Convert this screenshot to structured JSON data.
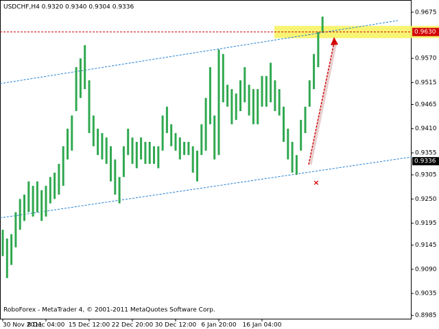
{
  "chart_data": {
    "type": "range-bar",
    "title": "USDCHF,H4 0.9320 0.9340 0.9304 0.9336",
    "footer": "RoboForex - MetaTrader 4, © 2001-2011 MetaQuotes Software Corp.",
    "categories": [
      "30 Nov 2011",
      null,
      null,
      null,
      null,
      null,
      null,
      null,
      null,
      null,
      "8 Dec 04:00",
      null,
      null,
      null,
      null,
      null,
      null,
      null,
      null,
      null,
      "15 Dec 12:00",
      null,
      null,
      null,
      null,
      null,
      null,
      null,
      null,
      null,
      "22 Dec 20:00",
      null,
      null,
      null,
      null,
      null,
      null,
      null,
      null,
      null,
      "30 Dec 12:00",
      null,
      null,
      null,
      null,
      null,
      null,
      null,
      null,
      null,
      "6 Jan 20:00",
      null,
      null,
      null,
      null,
      null,
      null,
      null,
      null,
      null,
      "16 Jan 04:00",
      null,
      null,
      null,
      null,
      null,
      null,
      null,
      null,
      null,
      null,
      null,
      null,
      null,
      null
    ],
    "series": [
      {
        "color": "#2fa84f",
        "low": [
          0.912,
          0.907,
          0.91,
          0.914,
          0.918,
          0.92,
          0.922,
          0.921,
          0.922,
          0.92,
          0.921,
          0.924,
          0.925,
          0.926,
          0.928,
          0.934,
          0.936,
          0.945,
          0.948,
          0.95,
          0.94,
          0.937,
          0.935,
          0.934,
          0.933,
          0.929,
          0.926,
          0.924,
          0.93,
          0.935,
          0.933,
          0.932,
          0.934,
          0.933,
          0.933,
          0.933,
          0.932,
          0.936,
          0.94,
          0.937,
          0.936,
          0.934,
          0.935,
          0.935,
          0.931,
          0.929,
          0.935,
          0.936,
          0.942,
          0.934,
          0.935,
          0.947,
          0.946,
          0.942,
          0.943,
          0.945,
          0.947,
          0.944,
          0.942,
          0.942,
          0.946,
          0.946,
          0.947,
          0.945,
          0.944,
          0.938,
          0.934,
          0.931,
          0.9305,
          0.936,
          0.94,
          0.946,
          0.95,
          0.955,
          0.963
        ],
        "high": [
          0.918,
          0.916,
          0.917,
          0.922,
          0.925,
          0.926,
          0.929,
          0.928,
          0.929,
          0.927,
          0.928,
          0.93,
          0.931,
          0.933,
          0.937,
          0.941,
          0.944,
          0.955,
          0.957,
          0.96,
          0.952,
          0.944,
          0.941,
          0.94,
          0.939,
          0.937,
          0.934,
          0.93,
          0.937,
          0.941,
          0.939,
          0.938,
          0.939,
          0.938,
          0.938,
          0.937,
          0.937,
          0.944,
          0.946,
          0.942,
          0.94,
          0.939,
          0.938,
          0.938,
          0.937,
          0.936,
          0.942,
          0.948,
          0.955,
          0.944,
          0.959,
          0.958,
          0.951,
          0.95,
          0.949,
          0.952,
          0.955,
          0.951,
          0.95,
          0.95,
          0.953,
          0.953,
          0.956,
          0.952,
          0.95,
          0.946,
          0.941,
          0.938,
          0.935,
          0.943,
          0.946,
          0.952,
          0.958,
          0.963,
          0.9665
        ]
      }
    ],
    "ylim": [
      0.8976,
      0.9695
    ],
    "yticks": [
      0.9675,
      {
        "value": 0.957,
        "label": "0.9570"
      },
      0.9515,
      0.9465,
      {
        "value": 0.941,
        "label": "0.9410"
      },
      0.9355,
      0.9305,
      {
        "value": 0.925,
        "label": "0.9250"
      },
      0.9195,
      0.9145,
      {
        "value": 0.909,
        "label": "0.9090"
      },
      0.9035,
      0.8985
    ],
    "level": {
      "value": 0.963,
      "label": "0.9630",
      "color": "#d40000"
    },
    "zone": [
      0.9616,
      0.9644
    ],
    "price": {
      "value": 0.9336,
      "label": "0.9336"
    }
  }
}
